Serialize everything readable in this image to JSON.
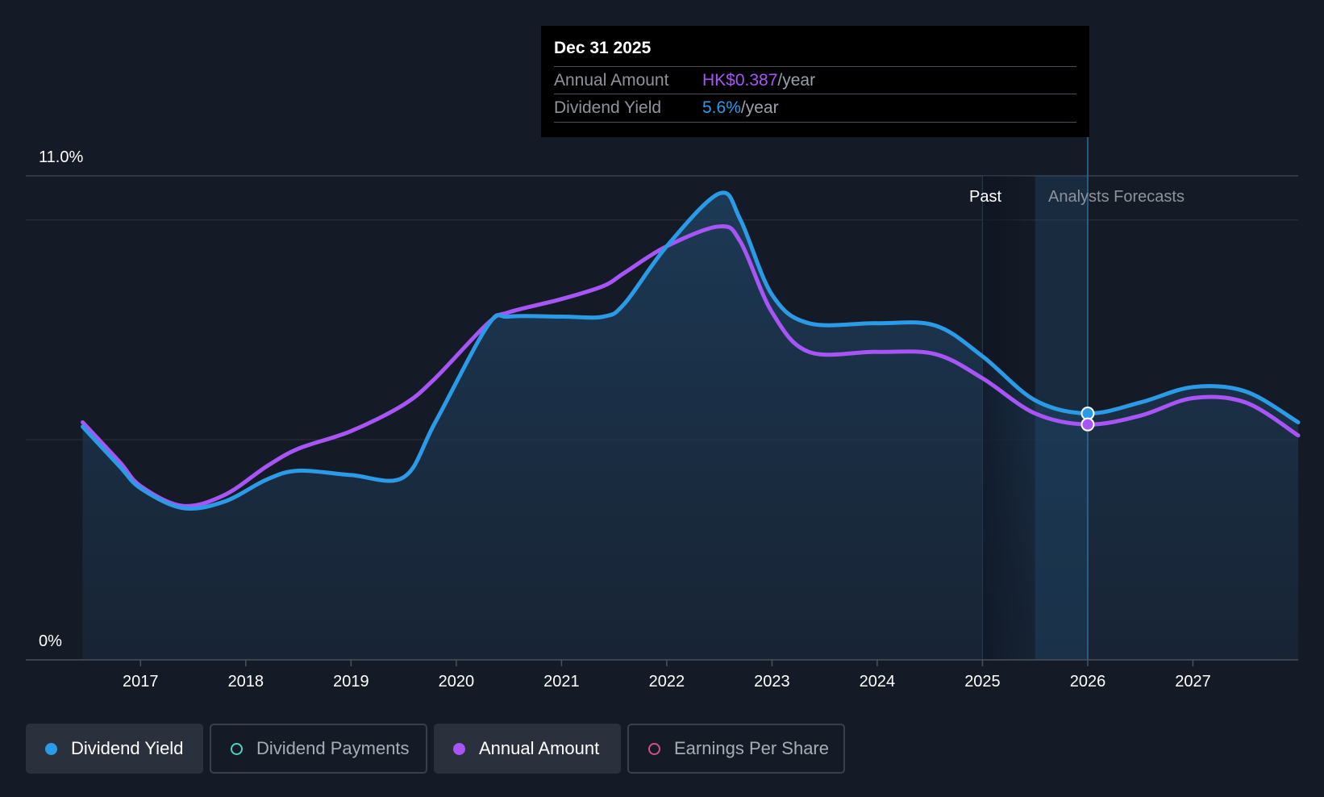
{
  "tooltip": {
    "date": "Dec 31 2025",
    "rows": [
      {
        "label": "Annual Amount",
        "value": "HK$0.387",
        "unit": "/year",
        "color": "#a855f7"
      },
      {
        "label": "Dividend Yield",
        "value": "5.6%",
        "unit": "/year",
        "color": "#2b9be8"
      }
    ]
  },
  "regions": {
    "past": "Past",
    "forecast": "Analysts Forecasts"
  },
  "legend": [
    {
      "label": "Dividend Yield",
      "color": "#2b9be8",
      "active": true,
      "filled": true
    },
    {
      "label": "Dividend Payments",
      "color": "#4fd1c5",
      "active": false,
      "filled": false
    },
    {
      "label": "Annual Amount",
      "color": "#a855f7",
      "active": true,
      "filled": true
    },
    {
      "label": "Earnings Per Share",
      "color": "#d0508a",
      "active": false,
      "filled": false
    }
  ],
  "chart_data": {
    "type": "line",
    "ylim": [
      0,
      11.0
    ],
    "y_tick_labels": [
      "11.0%",
      "0%"
    ],
    "x_ticks": [
      "2017",
      "2018",
      "2019",
      "2020",
      "2021",
      "2022",
      "2023",
      "2024",
      "2025",
      "2026",
      "2027"
    ],
    "forecast_start": "2026",
    "highlight": {
      "x": "2026",
      "annual_amount": 0.387,
      "dividend_yield": 5.6
    },
    "series": [
      {
        "name": "Dividend Yield",
        "color": "#2b9be8",
        "x": [
          2016.45,
          2016.8,
          2017.0,
          2017.4,
          2017.8,
          2018.2,
          2018.5,
          2019.0,
          2019.5,
          2019.8,
          2020.3,
          2020.5,
          2021.0,
          2021.4,
          2021.6,
          2022.0,
          2022.5,
          2022.7,
          2023.0,
          2023.35,
          2024.0,
          2024.55,
          2025.0,
          2025.5,
          2026.0,
          2026.5,
          2027.0,
          2027.5,
          2028.0
        ],
        "y": [
          5.3,
          4.4,
          3.9,
          3.45,
          3.6,
          4.1,
          4.3,
          4.2,
          4.15,
          5.4,
          7.6,
          7.8,
          7.8,
          7.8,
          8.1,
          9.4,
          10.6,
          10.0,
          8.3,
          7.65,
          7.65,
          7.6,
          6.9,
          5.9,
          5.6,
          5.85,
          6.2,
          6.1,
          5.4
        ]
      },
      {
        "name": "Annual Amount",
        "color": "#a855f7",
        "x": [
          2016.45,
          2016.8,
          2017.0,
          2017.4,
          2017.8,
          2018.2,
          2018.5,
          2019.0,
          2019.5,
          2019.8,
          2020.3,
          2020.5,
          2021.0,
          2021.4,
          2021.6,
          2022.0,
          2022.5,
          2022.7,
          2023.0,
          2023.35,
          2024.0,
          2024.55,
          2025.0,
          2025.5,
          2026.0,
          2026.5,
          2027.0,
          2027.5,
          2028.0
        ],
        "y": [
          5.4,
          4.5,
          3.95,
          3.5,
          3.75,
          4.4,
          4.8,
          5.2,
          5.8,
          6.4,
          7.65,
          7.9,
          8.2,
          8.5,
          8.8,
          9.4,
          9.85,
          9.5,
          7.9,
          7.0,
          7.0,
          6.95,
          6.4,
          5.6,
          5.35,
          5.55,
          5.95,
          5.85,
          5.1
        ]
      }
    ]
  }
}
